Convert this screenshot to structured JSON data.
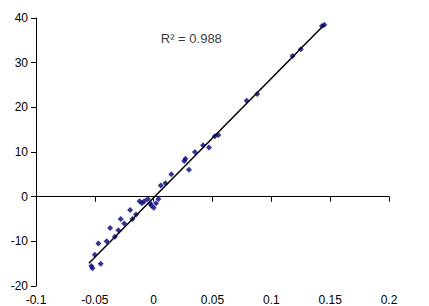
{
  "chart_data": {
    "type": "scatter",
    "series": [
      {
        "type": "scatter",
        "color": "#000080",
        "marker": "diamond",
        "x": [
          0.145,
          0.143,
          0.125,
          0.118,
          0.088,
          0.079,
          0.055,
          0.052,
          0.047,
          0.042,
          0.035,
          0.03,
          0.027,
          0.026,
          0.015,
          0.01,
          0.006,
          0.004,
          0.002,
          0,
          -0.002,
          -0.003,
          -0.005,
          -0.008,
          -0.01,
          -0.012,
          -0.015,
          -0.018,
          -0.02,
          -0.025,
          -0.028,
          -0.03,
          -0.033,
          -0.037,
          -0.04,
          -0.045,
          -0.047,
          -0.05,
          -0.053,
          -0.052
        ],
        "values": [
          38.5,
          38.2,
          33,
          31.5,
          23,
          21.5,
          13.8,
          13.5,
          11,
          11.5,
          10,
          6,
          8.5,
          8,
          5,
          3,
          2.5,
          -0.5,
          -1.5,
          -2.5,
          -2,
          -1.5,
          -0.5,
          -1,
          -1.5,
          -1,
          -4,
          -5,
          -3,
          -6,
          -5,
          -7.5,
          -9,
          -7,
          -10,
          -15,
          -10.5,
          -13,
          -15.5,
          -16
        ]
      },
      {
        "type": "line",
        "color": "#000000",
        "line_style": "solid",
        "x": [
          -0.055,
          0.145
        ],
        "values": [
          -14.9,
          38.5
        ]
      }
    ],
    "annotations": [
      {
        "text": "R² = 0.988",
        "x": 0.032,
        "y": 35.5
      }
    ],
    "xlim": [
      -0.1,
      0.2
    ],
    "xticks": [
      -0.1,
      -0.05,
      0,
      0.05,
      0.1,
      0.15,
      0.2
    ],
    "ylim": [
      -20,
      40
    ],
    "yticks": [
      -20,
      -10,
      0,
      10,
      20,
      30,
      40
    ],
    "grid": false
  }
}
